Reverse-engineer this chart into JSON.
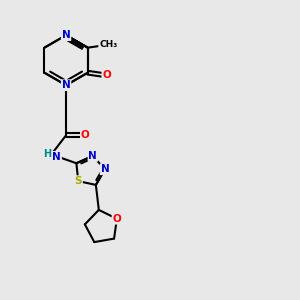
{
  "bg_color": "#e8e8e8",
  "atom_colors": {
    "C": "#000000",
    "N": "#0000cc",
    "O": "#ff0000",
    "S": "#aaaa00",
    "H": "#008888"
  },
  "bond_color": "#000000",
  "bond_width": 1.5,
  "dbo": 0.07
}
